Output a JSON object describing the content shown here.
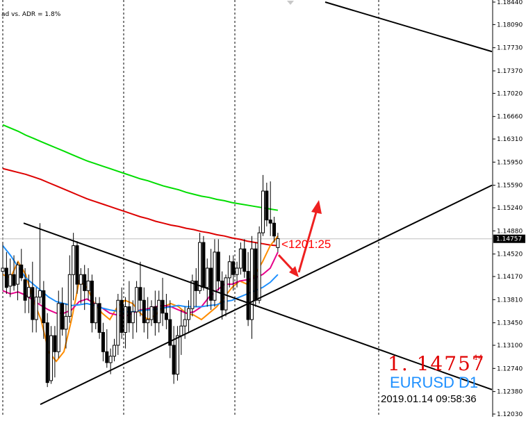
{
  "chart_data": {
    "type": "candlestick",
    "symbol_tf": "EURUSD D1",
    "indicator_info": "ad vs. ADR = 1.8%",
    "bid_price_big": "1. 14757",
    "bid_price_small": "14",
    "countdown": "<1201:25",
    "timestamp": "2019.01.14 09:58:36",
    "current_price": 1.14757,
    "current_price_label": "1.14757",
    "y_ticks": [
      1.1844,
      1.1809,
      1.1773,
      1.1737,
      1.1702,
      1.1666,
      1.1631,
      1.1595,
      1.1559,
      1.1524,
      1.1488,
      1.1452,
      1.1417,
      1.1381,
      1.1345,
      1.131,
      1.1274,
      1.1238,
      1.1203
    ],
    "y_tick_labels": [
      "1.18440",
      "1.18090",
      "1.17730",
      "1.17370",
      "1.17020",
      "1.16660",
      "1.16310",
      "1.15950",
      "1.15590",
      "1.15240",
      "1.14880",
      "1.14520",
      "1.14170",
      "1.13810",
      "1.13450",
      "1.13100",
      "1.12740",
      "1.12380",
      "1.12030"
    ],
    "ylim": [
      1.1203,
      1.1844
    ],
    "grid": "vertical-dashed",
    "colors": {
      "background": "#ffffff",
      "bull": "#ffffff",
      "bear": "#000000",
      "wick": "#000000",
      "ma_green": "#00dd00",
      "ma_red": "#dd0000",
      "ma_orange": "#ff8c00",
      "ma_magenta": "#e6008a",
      "ma_blue": "#1e90ff",
      "arrow": "#ee2020",
      "trendline": "#000000",
      "current_price_line": "#c0c0c0"
    },
    "candles": [
      [
        1.1425,
        1.147,
        1.1395,
        1.143
      ],
      [
        1.143,
        1.1455,
        1.139,
        1.14
      ],
      [
        1.1402,
        1.1445,
        1.1385,
        1.142
      ],
      [
        1.142,
        1.145,
        1.1395,
        1.1403
      ],
      [
        1.1405,
        1.144,
        1.138,
        1.1435
      ],
      [
        1.1435,
        1.146,
        1.141,
        1.1415
      ],
      [
        1.1412,
        1.143,
        1.136,
        1.138
      ],
      [
        1.1385,
        1.142,
        1.136,
        1.14
      ],
      [
        1.14,
        1.144,
        1.133,
        1.135
      ],
      [
        1.135,
        1.14,
        1.133,
        1.1385
      ],
      [
        1.1385,
        1.15,
        1.1375,
        1.1395
      ],
      [
        1.1395,
        1.141,
        1.132,
        1.1345
      ],
      [
        1.1345,
        1.136,
        1.1245,
        1.1252
      ],
      [
        1.1255,
        1.134,
        1.125,
        1.1325
      ],
      [
        1.1325,
        1.134,
        1.126,
        1.13
      ],
      [
        1.13,
        1.1395,
        1.129,
        1.1375
      ],
      [
        1.1375,
        1.14,
        1.1325,
        1.1335
      ],
      [
        1.1335,
        1.1375,
        1.1305,
        1.1355
      ],
      [
        1.1355,
        1.145,
        1.1345,
        1.142
      ],
      [
        1.142,
        1.1485,
        1.138,
        1.1465
      ],
      [
        1.1465,
        1.1472,
        1.139,
        1.1405
      ],
      [
        1.1405,
        1.143,
        1.1375,
        1.142
      ],
      [
        1.142,
        1.1435,
        1.1365,
        1.1395
      ],
      [
        1.1395,
        1.143,
        1.138,
        1.141
      ],
      [
        1.141,
        1.142,
        1.133,
        1.1345
      ],
      [
        1.1345,
        1.1385,
        1.1335,
        1.1375
      ],
      [
        1.1375,
        1.1385,
        1.132,
        1.133
      ],
      [
        1.133,
        1.1345,
        1.1285,
        1.13
      ],
      [
        1.13,
        1.1335,
        1.1275,
        1.1283
      ],
      [
        1.1283,
        1.1305,
        1.1265,
        1.1293
      ],
      [
        1.1293,
        1.132,
        1.1285,
        1.131
      ],
      [
        1.131,
        1.139,
        1.1295,
        1.138
      ],
      [
        1.138,
        1.14,
        1.132,
        1.133
      ],
      [
        1.133,
        1.1385,
        1.1305,
        1.137
      ],
      [
        1.137,
        1.141,
        1.133,
        1.1345
      ],
      [
        1.1345,
        1.138,
        1.132,
        1.1362
      ],
      [
        1.1362,
        1.141,
        1.133,
        1.14
      ],
      [
        1.14,
        1.144,
        1.1355,
        1.138
      ],
      [
        1.138,
        1.14,
        1.133,
        1.1345
      ],
      [
        1.1345,
        1.1385,
        1.132,
        1.135
      ],
      [
        1.135,
        1.138,
        1.134,
        1.137
      ],
      [
        1.137,
        1.1395,
        1.1325,
        1.1345
      ],
      [
        1.1345,
        1.1395,
        1.133,
        1.138
      ],
      [
        1.138,
        1.1415,
        1.134,
        1.136
      ],
      [
        1.136,
        1.139,
        1.1335,
        1.135
      ],
      [
        1.135,
        1.138,
        1.129,
        1.131
      ],
      [
        1.131,
        1.134,
        1.125,
        1.1265
      ],
      [
        1.1265,
        1.134,
        1.1255,
        1.1325
      ],
      [
        1.1325,
        1.1365,
        1.1295,
        1.134
      ],
      [
        1.134,
        1.137,
        1.132,
        1.135
      ],
      [
        1.135,
        1.138,
        1.133,
        1.1367
      ],
      [
        1.1367,
        1.142,
        1.1355,
        1.141
      ],
      [
        1.141,
        1.143,
        1.137,
        1.1395
      ],
      [
        1.1395,
        1.1485,
        1.139,
        1.147
      ],
      [
        1.147,
        1.148,
        1.1395,
        1.14
      ],
      [
        1.14,
        1.1445,
        1.137,
        1.143
      ],
      [
        1.143,
        1.146,
        1.1365,
        1.138
      ],
      [
        1.138,
        1.1475,
        1.137,
        1.1455
      ],
      [
        1.1455,
        1.1475,
        1.1395,
        1.141
      ],
      [
        1.141,
        1.1425,
        1.135,
        1.1365
      ],
      [
        1.1365,
        1.142,
        1.1355,
        1.1415
      ],
      [
        1.1415,
        1.145,
        1.14,
        1.144
      ],
      [
        1.144,
        1.145,
        1.1395,
        1.142
      ],
      [
        1.142,
        1.144,
        1.14,
        1.143
      ],
      [
        1.143,
        1.147,
        1.142,
        1.146
      ],
      [
        1.146,
        1.1475,
        1.1415,
        1.1425
      ],
      [
        1.1425,
        1.1455,
        1.134,
        1.135
      ],
      [
        1.135,
        1.148,
        1.132,
        1.146
      ],
      [
        1.146,
        1.147,
        1.137,
        1.138
      ],
      [
        1.138,
        1.1495,
        1.1375,
        1.1485
      ],
      [
        1.1485,
        1.1575,
        1.148,
        1.155
      ],
      [
        1.155,
        1.1563,
        1.1495,
        1.1505
      ],
      [
        1.1505,
        1.1565,
        1.148,
        1.15
      ],
      [
        1.15,
        1.151,
        1.147,
        1.148
      ],
      [
        1.1462,
        1.1485,
        1.1455,
        1.1476
      ]
    ],
    "ma_green": [
      1.1653,
      1.1648,
      1.1643,
      1.1637,
      1.1632,
      1.1627,
      1.1622,
      1.1617,
      1.1612,
      1.1607,
      1.1602,
      1.1597,
      1.1593,
      1.1589,
      1.1585,
      1.1581,
      1.1577,
      1.1573,
      1.1569,
      1.1566,
      1.1562,
      1.1558,
      1.1555,
      1.1552,
      1.1548,
      1.1545,
      1.1542,
      1.154,
      1.1537,
      1.1535,
      1.1532,
      1.153,
      1.1528,
      1.1526,
      1.1524,
      1.1522,
      1.152
    ],
    "ma_red": [
      1.1585,
      1.1582,
      1.1579,
      1.1576,
      1.1572,
      1.1568,
      1.1563,
      1.1558,
      1.1553,
      1.1548,
      1.1543,
      1.1538,
      1.1534,
      1.153,
      1.1526,
      1.1522,
      1.1518,
      1.1514,
      1.151,
      1.1507,
      1.1503,
      1.15,
      1.1497,
      1.1495,
      1.1492,
      1.149,
      1.1487,
      1.1485,
      1.1482,
      1.148,
      1.1477,
      1.1475,
      1.1472,
      1.147,
      1.1468,
      1.1466,
      1.1465
    ],
    "ma_orange": [
      1.142,
      1.1415,
      1.144,
      1.142,
      1.138,
      1.135,
      1.13,
      1.1285,
      1.13,
      1.135,
      1.141,
      1.14,
      1.1375,
      1.136,
      1.135,
      1.137,
      1.138,
      1.1375,
      1.136,
      1.135,
      1.1357,
      1.137,
      1.1375,
      1.137,
      1.136,
      1.1357,
      1.135,
      1.136,
      1.137,
      1.1385,
      1.14,
      1.141,
      1.1405,
      1.142,
      1.144,
      1.1465,
      1.148
    ],
    "ma_magenta": [
      1.1395,
      1.139,
      1.1393,
      1.1388,
      1.138,
      1.1372,
      1.1365,
      1.136,
      1.136,
      1.1365,
      1.1378,
      1.1382,
      1.1375,
      1.1368,
      1.136,
      1.1357,
      1.1355,
      1.136,
      1.1365,
      1.1367,
      1.137,
      1.1372,
      1.137,
      1.1365,
      1.136,
      1.1362,
      1.137,
      1.1385,
      1.1395,
      1.1405,
      1.1405,
      1.141,
      1.1412,
      1.1415,
      1.142,
      1.143,
      1.1455
    ],
    "ma_blue": [
      1.1465,
      1.145,
      1.1432,
      1.1415,
      1.1405,
      1.1395,
      1.1385,
      1.1378,
      1.1375,
      1.1372,
      1.1373,
      1.1375,
      1.1372,
      1.1368,
      1.1365,
      1.1363,
      1.1362,
      1.1362,
      1.1364,
      1.1365,
      1.1366,
      1.1368,
      1.137,
      1.1372,
      1.137,
      1.137,
      1.137,
      1.1372,
      1.1373,
      1.1378,
      1.138,
      1.1385,
      1.139,
      1.1395,
      1.14,
      1.1408,
      1.142
    ]
  }
}
